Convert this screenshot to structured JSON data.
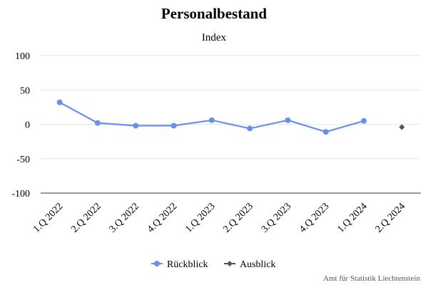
{
  "chart_data": {
    "type": "line",
    "title": "Personalbestand",
    "subtitle": "Index",
    "xlabel": "",
    "ylabel": "",
    "categories": [
      "1.Q 2022",
      "2.Q 2022",
      "3.Q 2022",
      "4.Q 2022",
      "1.Q 2023",
      "2.Q 2023",
      "3.Q 2023",
      "4.Q 2023",
      "1.Q 2024",
      "2.Q 2024"
    ],
    "ylim": [
      -100,
      100
    ],
    "yticks": [
      100,
      50,
      0,
      -50,
      -100
    ],
    "grid": true,
    "legend_position": "bottom",
    "series": [
      {
        "name": "Rückblick",
        "color": "#6b8ff0",
        "marker": "circle",
        "values": [
          32,
          2,
          -2,
          -2,
          6,
          -6,
          6,
          -11,
          5,
          null
        ]
      },
      {
        "name": "Ausblick",
        "color": "#555555",
        "marker": "diamond",
        "values": [
          null,
          null,
          null,
          null,
          null,
          null,
          null,
          null,
          null,
          -4
        ]
      }
    ],
    "credit": "Amt für Statistik Liechtenstein"
  }
}
